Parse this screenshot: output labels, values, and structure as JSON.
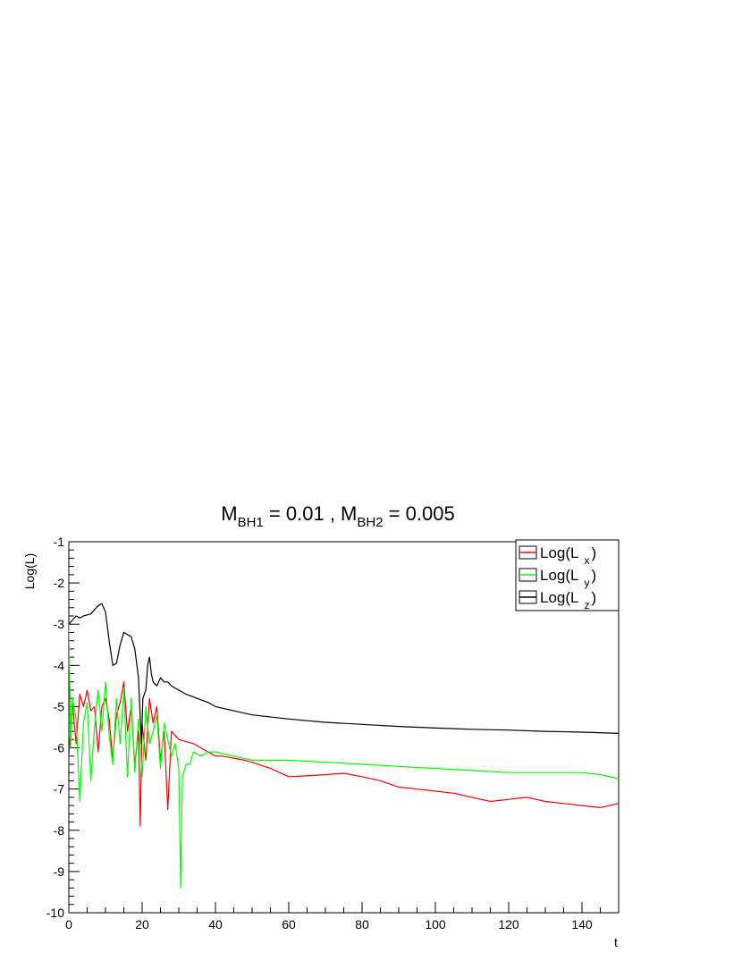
{
  "chart_data": {
    "type": "line",
    "title": {
      "parts": [
        {
          "text": "M",
          "sub": false
        },
        {
          "text": "BH1",
          "sub": true
        },
        {
          "text": " = 0.01 , M",
          "sub": false
        },
        {
          "text": "BH2",
          "sub": true
        },
        {
          "text": " = 0.005",
          "sub": false
        }
      ]
    },
    "xlabel": "t",
    "ylabel": "Log(L)",
    "xlim": [
      0,
      150
    ],
    "ylim": [
      -10,
      -1
    ],
    "x_ticks": [
      "0",
      "20",
      "40",
      "60",
      "80",
      "100",
      "120",
      "140"
    ],
    "y_ticks": [
      "-1",
      "-2",
      "-3",
      "-4",
      "-5",
      "-6",
      "-7",
      "-8",
      "-9",
      "-10"
    ],
    "grid": false,
    "legend_position": "top-right",
    "series": [
      {
        "name": "Log(L_x)",
        "legend_main": "Log(L",
        "legend_sub": "x",
        "legend_close": ")",
        "color": "#ff0000",
        "x": [
          0,
          1,
          2,
          3,
          4,
          5,
          6,
          7,
          8,
          9,
          10,
          11,
          12,
          13,
          14,
          15,
          16,
          17,
          18,
          19,
          19.5,
          20,
          21,
          22,
          23,
          24,
          25,
          26,
          27,
          28,
          29,
          30,
          32,
          34,
          36,
          38,
          40,
          42,
          45,
          48,
          50,
          55,
          60,
          65,
          70,
          75,
          80,
          85,
          90,
          95,
          100,
          105,
          110,
          115,
          120,
          125,
          130,
          135,
          140,
          145,
          150
        ],
        "y": [
          -6.2,
          -4.9,
          -5.9,
          -4.7,
          -5.0,
          -4.6,
          -5.1,
          -5.0,
          -6.1,
          -5.0,
          -4.8,
          -5.3,
          -6.3,
          -5.2,
          -4.9,
          -4.4,
          -5.6,
          -5.0,
          -6.4,
          -5.6,
          -7.9,
          -5.4,
          -6.3,
          -4.8,
          -5.4,
          -5.0,
          -6.3,
          -5.6,
          -7.5,
          -5.6,
          -5.7,
          -5.8,
          -5.85,
          -5.9,
          -6.0,
          -6.1,
          -6.2,
          -6.2,
          -6.25,
          -6.3,
          -6.35,
          -6.5,
          -6.7,
          -6.68,
          -6.65,
          -6.62,
          -6.7,
          -6.8,
          -6.95,
          -7.0,
          -7.05,
          -7.1,
          -7.2,
          -7.3,
          -7.25,
          -7.2,
          -7.3,
          -7.35,
          -7.4,
          -7.45,
          -7.35
        ]
      },
      {
        "name": "Log(L_y)",
        "legend_main": "Log(L",
        "legend_sub": "y",
        "legend_close": ")",
        "color": "#00ff00",
        "x": [
          0,
          0.5,
          1,
          2,
          3,
          4,
          5,
          6,
          7,
          8,
          9,
          10,
          11,
          12,
          13,
          14,
          15,
          16,
          17,
          18,
          19,
          20,
          21,
          22,
          23,
          24,
          25,
          26,
          27,
          28,
          29,
          30,
          30.5,
          31,
          32,
          33,
          34,
          36,
          38,
          40,
          45,
          50,
          55,
          60,
          70,
          80,
          90,
          100,
          110,
          120,
          130,
          140,
          145,
          150
        ],
        "y": [
          -3.0,
          -6.0,
          -4.8,
          -5.3,
          -7.3,
          -5.4,
          -4.9,
          -6.8,
          -5.5,
          -4.6,
          -5.6,
          -4.4,
          -5.7,
          -6.4,
          -4.8,
          -5.9,
          -4.6,
          -6.7,
          -4.8,
          -6.6,
          -5.3,
          -6.7,
          -5.0,
          -5.9,
          -5.6,
          -5.2,
          -6.5,
          -5.4,
          -5.8,
          -6.2,
          -5.9,
          -6.5,
          -9.4,
          -6.7,
          -6.4,
          -6.4,
          -6.1,
          -6.2,
          -6.1,
          -6.1,
          -6.2,
          -6.3,
          -6.3,
          -6.3,
          -6.35,
          -6.4,
          -6.45,
          -6.5,
          -6.55,
          -6.6,
          -6.6,
          -6.6,
          -6.65,
          -6.75
        ]
      },
      {
        "name": "Log(L_z)",
        "legend_main": "Log(L",
        "legend_sub": "z",
        "legend_close": ")",
        "color": "#000000",
        "x": [
          0,
          1,
          2,
          3,
          4,
          6,
          8,
          9,
          10,
          11,
          12,
          13,
          14,
          15,
          16,
          17,
          18,
          19,
          19.8,
          20.2,
          21,
          21.5,
          22,
          22.5,
          23,
          24,
          25,
          26,
          27,
          28,
          30,
          32,
          35,
          38,
          40,
          45,
          50,
          60,
          70,
          80,
          90,
          100,
          110,
          120,
          130,
          140,
          150
        ],
        "y": [
          -3.0,
          -2.9,
          -2.8,
          -2.85,
          -2.8,
          -2.75,
          -2.55,
          -2.5,
          -2.7,
          -3.4,
          -4.0,
          -3.95,
          -3.5,
          -3.2,
          -3.25,
          -3.3,
          -3.6,
          -4.3,
          -5.9,
          -4.8,
          -4.6,
          -4.0,
          -3.8,
          -4.2,
          -4.4,
          -4.5,
          -4.3,
          -4.4,
          -4.4,
          -4.5,
          -4.6,
          -4.7,
          -4.8,
          -4.9,
          -5.0,
          -5.1,
          -5.2,
          -5.3,
          -5.38,
          -5.43,
          -5.48,
          -5.52,
          -5.55,
          -5.57,
          -5.6,
          -5.62,
          -5.65
        ]
      }
    ]
  }
}
